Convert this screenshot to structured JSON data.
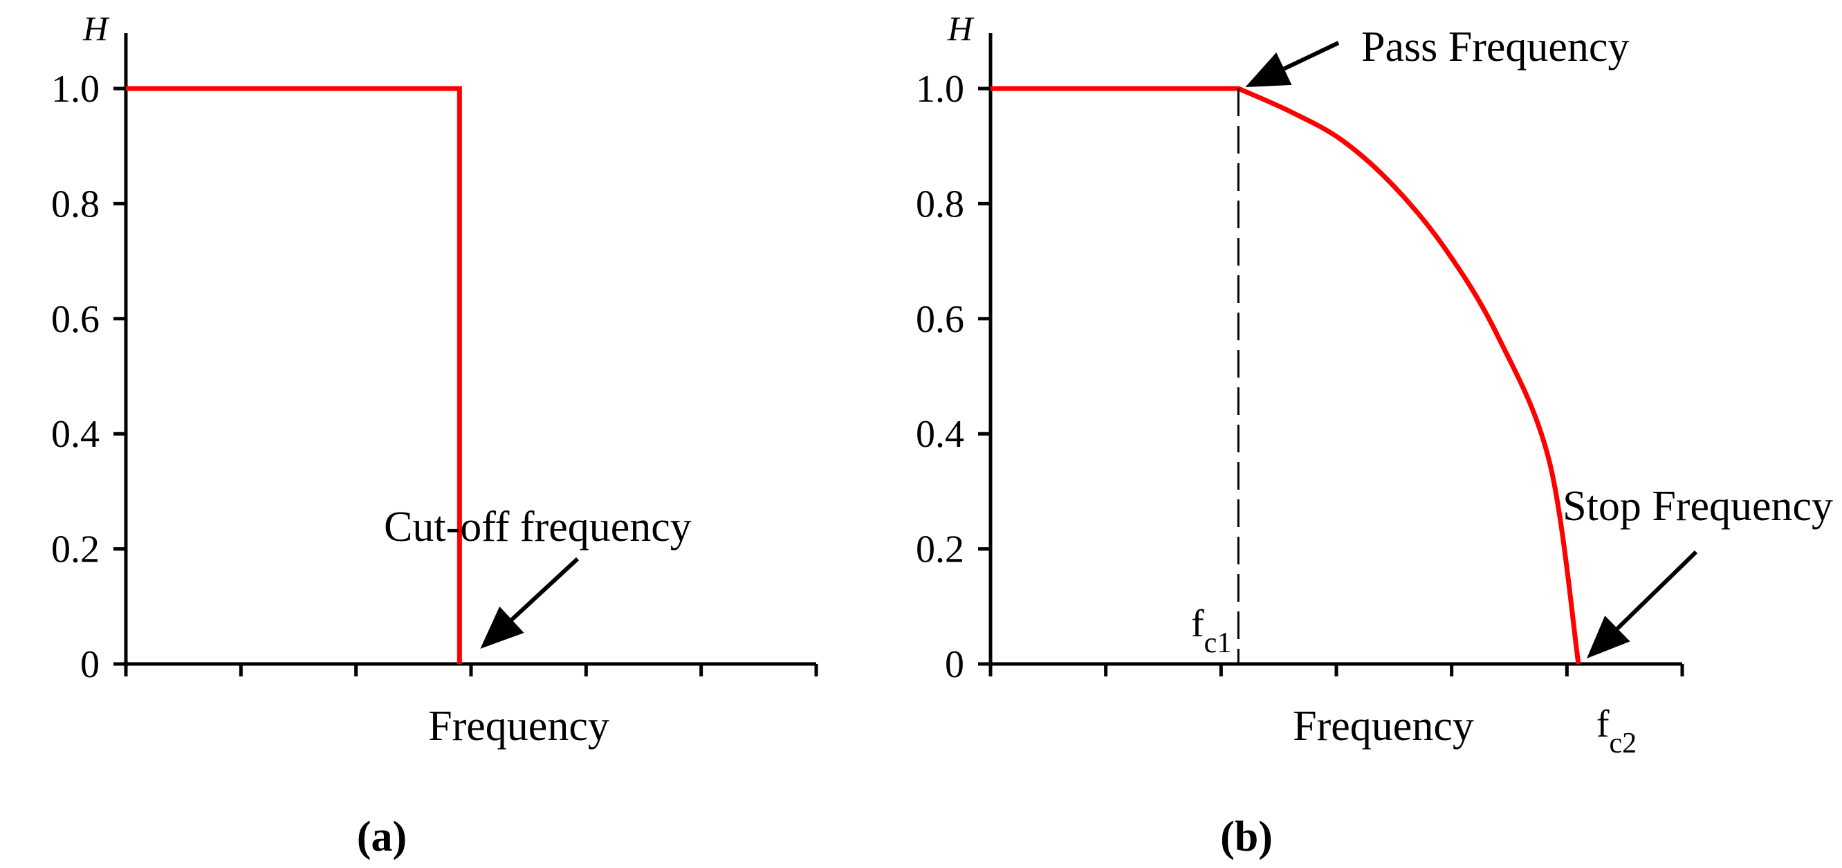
{
  "chart_data": [
    {
      "type": "line",
      "panel_label": "(a)",
      "ylabel": "H",
      "xlabel": "Frequency",
      "ylim": [
        0,
        1.0
      ],
      "yticks": [
        "0",
        "0.2",
        "0.4",
        "0.6",
        "0.8",
        "1.0"
      ],
      "ytick_values": [
        0,
        0.2,
        0.4,
        0.6,
        0.8,
        1.0
      ],
      "xlim": [
        0,
        6
      ],
      "xtick_values": [
        0,
        1,
        2,
        3,
        4,
        5,
        6
      ],
      "series": [
        {
          "x": [
            0,
            2.9,
            2.9
          ],
          "y": [
            1.0,
            1.0,
            0
          ],
          "color": "#ff0000"
        }
      ],
      "annotations": [
        {
          "text": "Cut-off frequency",
          "x": 2.9,
          "y": 0
        }
      ]
    },
    {
      "type": "line",
      "panel_label": "(b)",
      "ylabel": "H",
      "xlabel": "Frequency",
      "ylim": [
        0,
        1.0
      ],
      "yticks": [
        "0",
        "0.2",
        "0.4",
        "0.6",
        "0.8",
        "1.0"
      ],
      "ytick_values": [
        0,
        0.2,
        0.4,
        0.6,
        0.8,
        1.0
      ],
      "xlim": [
        0,
        6
      ],
      "xtick_values": [
        0,
        1,
        2,
        3,
        4,
        5,
        6
      ],
      "series": [
        {
          "x": [
            0,
            2.15,
            2.6,
            3.05,
            3.5,
            3.95,
            4.4,
            4.85,
            5.1
          ],
          "y": [
            1.0,
            1.0,
            0.96,
            0.91,
            0.83,
            0.72,
            0.57,
            0.35,
            0
          ],
          "color": "#ff0000"
        }
      ],
      "vlines": [
        {
          "x": 2.15,
          "label": "fc1"
        }
      ],
      "annotations": [
        {
          "text": "Pass Frequency",
          "x": 2.15,
          "y": 1.0
        },
        {
          "text": "Stop Frequency",
          "x": 5.1,
          "y": 0
        }
      ],
      "x_marks": [
        {
          "x": 2.15,
          "base": "f",
          "sub": "c1"
        },
        {
          "x": 5.1,
          "base": "f",
          "sub": "c2"
        }
      ]
    }
  ]
}
